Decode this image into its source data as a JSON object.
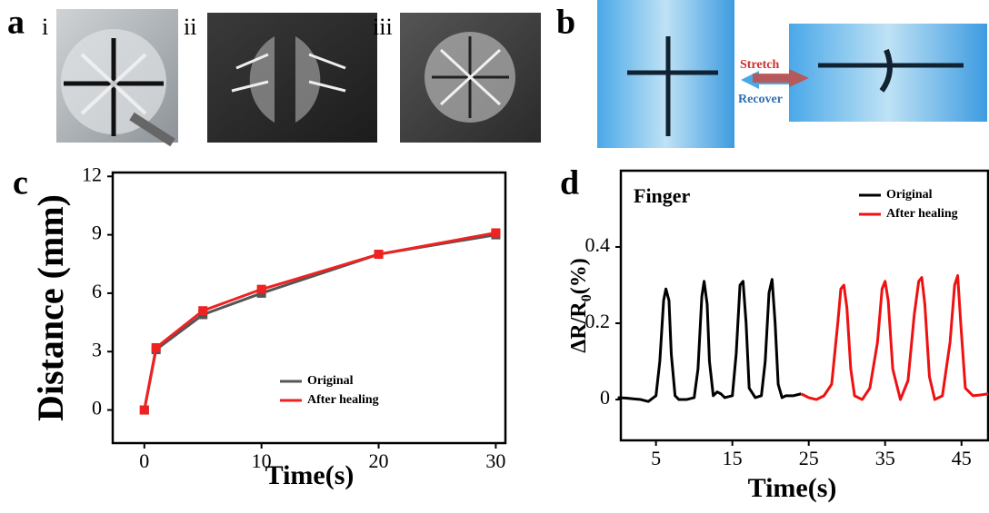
{
  "panels": {
    "a": "a",
    "a_items": [
      "i",
      "ii",
      "iii"
    ],
    "b": "b",
    "b_arrows": [
      "Stretch",
      "Recover"
    ],
    "c": "c",
    "d": "d"
  },
  "chart_data": [
    {
      "type": "line",
      "xlabel": "Time(s)",
      "ylabel": "Distance (mm)",
      "x": [
        0,
        1,
        5,
        10,
        20,
        30
      ],
      "xlim": [
        -2.7,
        30.9
      ],
      "xticks": [
        0,
        10,
        20,
        30
      ],
      "ylim": [
        -1.7,
        12.2
      ],
      "yticks": [
        0,
        3,
        6,
        9,
        12
      ],
      "markers": true,
      "legend": "center",
      "series": [
        {
          "name": "Original",
          "color": "#555555",
          "values": [
            0,
            3.1,
            4.9,
            6.0,
            8.0,
            9.0
          ]
        },
        {
          "name": "After healing",
          "color": "#ee2222",
          "values": [
            0,
            3.2,
            5.1,
            6.2,
            8.0,
            9.1
          ]
        }
      ]
    },
    {
      "type": "line",
      "title": "Finger",
      "xlabel": "Time(s)",
      "ylabel": [
        "ΔR/R",
        "0",
        "(%)"
      ],
      "xlim": [
        0.4,
        48.6
      ],
      "xticks": [
        5,
        15,
        25,
        35,
        45
      ],
      "ylim": [
        -0.107,
        0.6
      ],
      "yticks": [
        0,
        0.2,
        0.4
      ],
      "markers": false,
      "legend": "upper right",
      "series": [
        {
          "name": "Original",
          "color": "#000000",
          "x": [
            0,
            1,
            2,
            3,
            4,
            5,
            5.5,
            6,
            6.3,
            6.7,
            7,
            7.5,
            8,
            9,
            10,
            10.5,
            11,
            11.3,
            11.7,
            12,
            12.5,
            13,
            13.5,
            14,
            15,
            15.5,
            16,
            16.4,
            16.8,
            17.2,
            18,
            18.8,
            19.3,
            19.8,
            20.2,
            20.6,
            21,
            21.5,
            22,
            23,
            24
          ],
          "values": [
            0.005,
            0.004,
            0.002,
            0,
            -0.005,
            0.01,
            0.1,
            0.26,
            0.29,
            0.26,
            0.12,
            0.01,
            0,
            0,
            0.005,
            0.08,
            0.27,
            0.31,
            0.25,
            0.1,
            0.01,
            0.02,
            0.015,
            0.005,
            0.01,
            0.12,
            0.3,
            0.31,
            0.2,
            0.03,
            0.005,
            0.01,
            0.1,
            0.28,
            0.315,
            0.2,
            0.04,
            0.005,
            0.01,
            0.01,
            0.015
          ]
        },
        {
          "name": "After healing",
          "color": "#ee1111",
          "x": [
            24,
            25,
            26,
            27,
            28,
            28.8,
            29.2,
            29.6,
            30,
            30.5,
            31,
            32,
            33,
            34,
            34.6,
            35,
            35.4,
            36,
            37,
            38,
            38.8,
            39.4,
            39.8,
            40.2,
            40.8,
            41.5,
            42.5,
            43.5,
            44.1,
            44.5,
            44.9,
            45.5,
            46.5,
            47.5,
            48.5
          ],
          "values": [
            0.015,
            0.005,
            0,
            0.01,
            0.04,
            0.2,
            0.29,
            0.3,
            0.24,
            0.08,
            0.01,
            0,
            0.03,
            0.15,
            0.29,
            0.31,
            0.26,
            0.08,
            0,
            0.05,
            0.22,
            0.31,
            0.32,
            0.25,
            0.06,
            0,
            0.01,
            0.15,
            0.3,
            0.325,
            0.2,
            0.03,
            0.01,
            0.012,
            0.015
          ]
        }
      ]
    }
  ]
}
